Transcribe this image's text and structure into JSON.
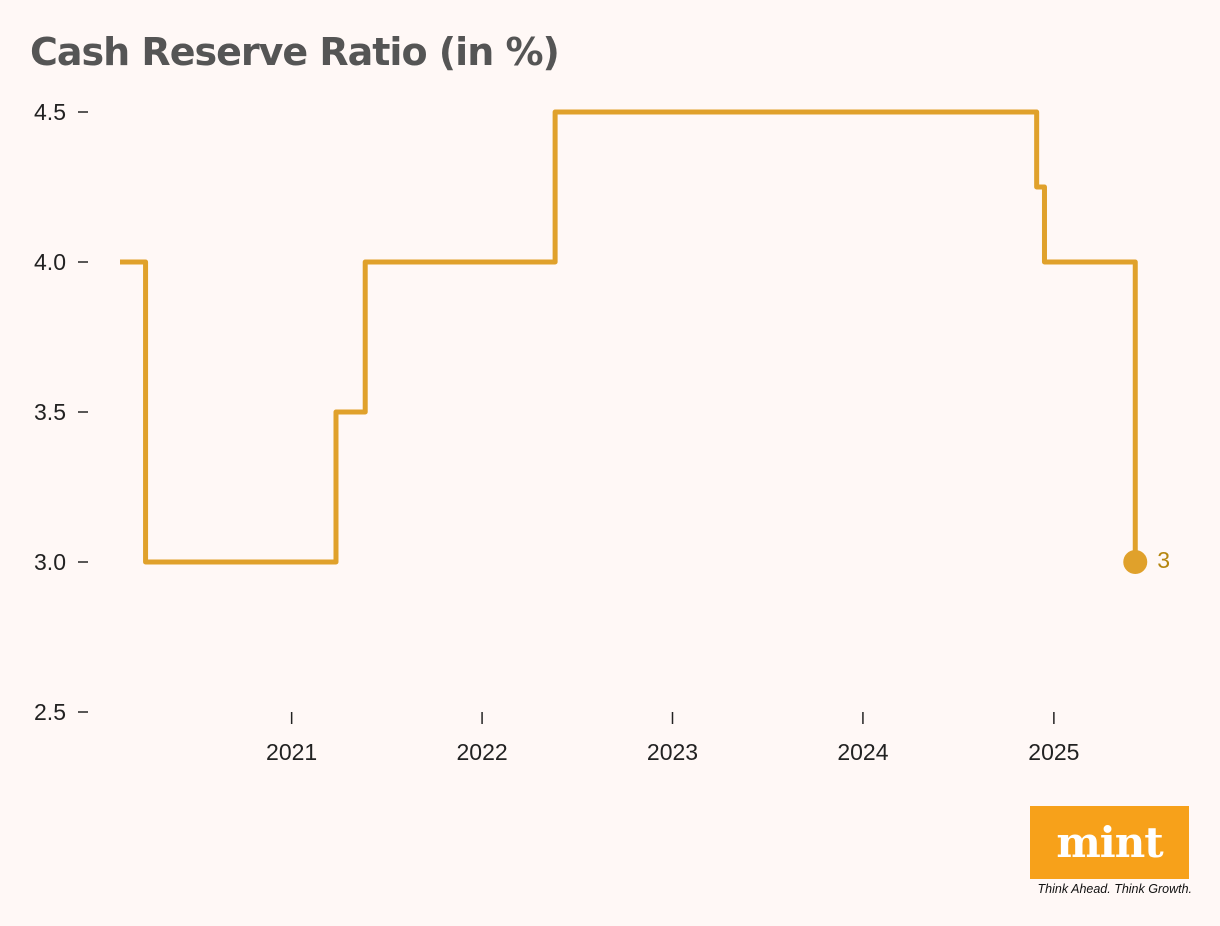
{
  "chart_data": {
    "type": "line",
    "step": true,
    "title": "Cash Reserve Ratio (in %)",
    "xlabel": "",
    "ylabel": "",
    "ylim": [
      2.5,
      4.5
    ],
    "xlim": [
      "2020-02-07",
      "2025-07-10"
    ],
    "y_ticks": [
      4.5,
      4.0,
      3.5,
      3.0,
      2.5
    ],
    "y_tick_labels": [
      "4.5",
      "4.0",
      "3.5",
      "3.0",
      "2.5"
    ],
    "x_ticks": [
      "2021-01-01",
      "2022-01-01",
      "2023-01-01",
      "2024-01-01",
      "2025-01-01"
    ],
    "x_tick_labels": [
      "2021",
      "2022",
      "2023",
      "2024",
      "2025"
    ],
    "grid": false,
    "legend": "none",
    "line_color": "#e0a12b",
    "end_label_color": "#b5860f",
    "series": [
      {
        "x": [
          "2020-02-07",
          "2020-03-27",
          "2021-03-27",
          "2021-05-22",
          "2022-05-21",
          "2024-11-29",
          "2024-12-14",
          "2025-06-06",
          "2025-06-06"
        ],
        "y": [
          4.0,
          3.0,
          3.5,
          4.0,
          4.5,
          4.25,
          4.0,
          4.0,
          3.0
        ]
      }
    ],
    "end_label": "3"
  },
  "logo": {
    "word": "mint",
    "tagline": "Think Ahead. Think Growth.",
    "background": "#f7a11a"
  }
}
